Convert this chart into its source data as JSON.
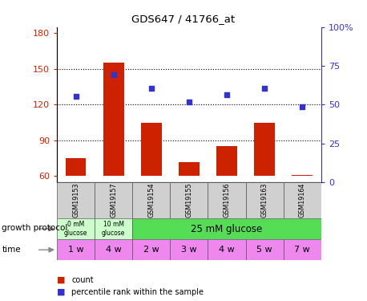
{
  "title": "GDS647 / 41766_at",
  "samples": [
    "GSM19153",
    "GSM19157",
    "GSM19154",
    "GSM19155",
    "GSM19156",
    "GSM19163",
    "GSM19164"
  ],
  "bar_values": [
    75,
    155,
    105,
    72,
    85,
    105,
    61
  ],
  "scatter_values": [
    127,
    145,
    134,
    122,
    128,
    134,
    118
  ],
  "ylim_left": [
    55,
    185
  ],
  "yticks_left": [
    60,
    90,
    120,
    150,
    180
  ],
  "yticks_right": [
    0,
    25,
    50,
    75,
    100
  ],
  "ylim_right": [
    0,
    100
  ],
  "bar_color": "#cc2200",
  "scatter_color": "#3333cc",
  "bar_width": 0.55,
  "grid_lines": [
    90,
    120,
    150
  ],
  "time_labels": [
    "1 w",
    "4 w",
    "2 w",
    "3 w",
    "4 w",
    "5 w",
    "7 w"
  ],
  "time_color": "#ee88ee",
  "growth_protocol_label": "growth protocol",
  "time_label": "time",
  "legend_count": "count",
  "legend_percentile": "percentile rank within the sample",
  "label_color_red": "#cc2200",
  "label_color_blue": "#3333cc",
  "prot_regions": [
    [
      0,
      1,
      "0 mM\nglucose",
      "#ccffcc"
    ],
    [
      1,
      2,
      "10 mM\nglucose",
      "#ccffcc"
    ],
    [
      2,
      7,
      "25 mM glucose",
      "#55dd55"
    ]
  ]
}
